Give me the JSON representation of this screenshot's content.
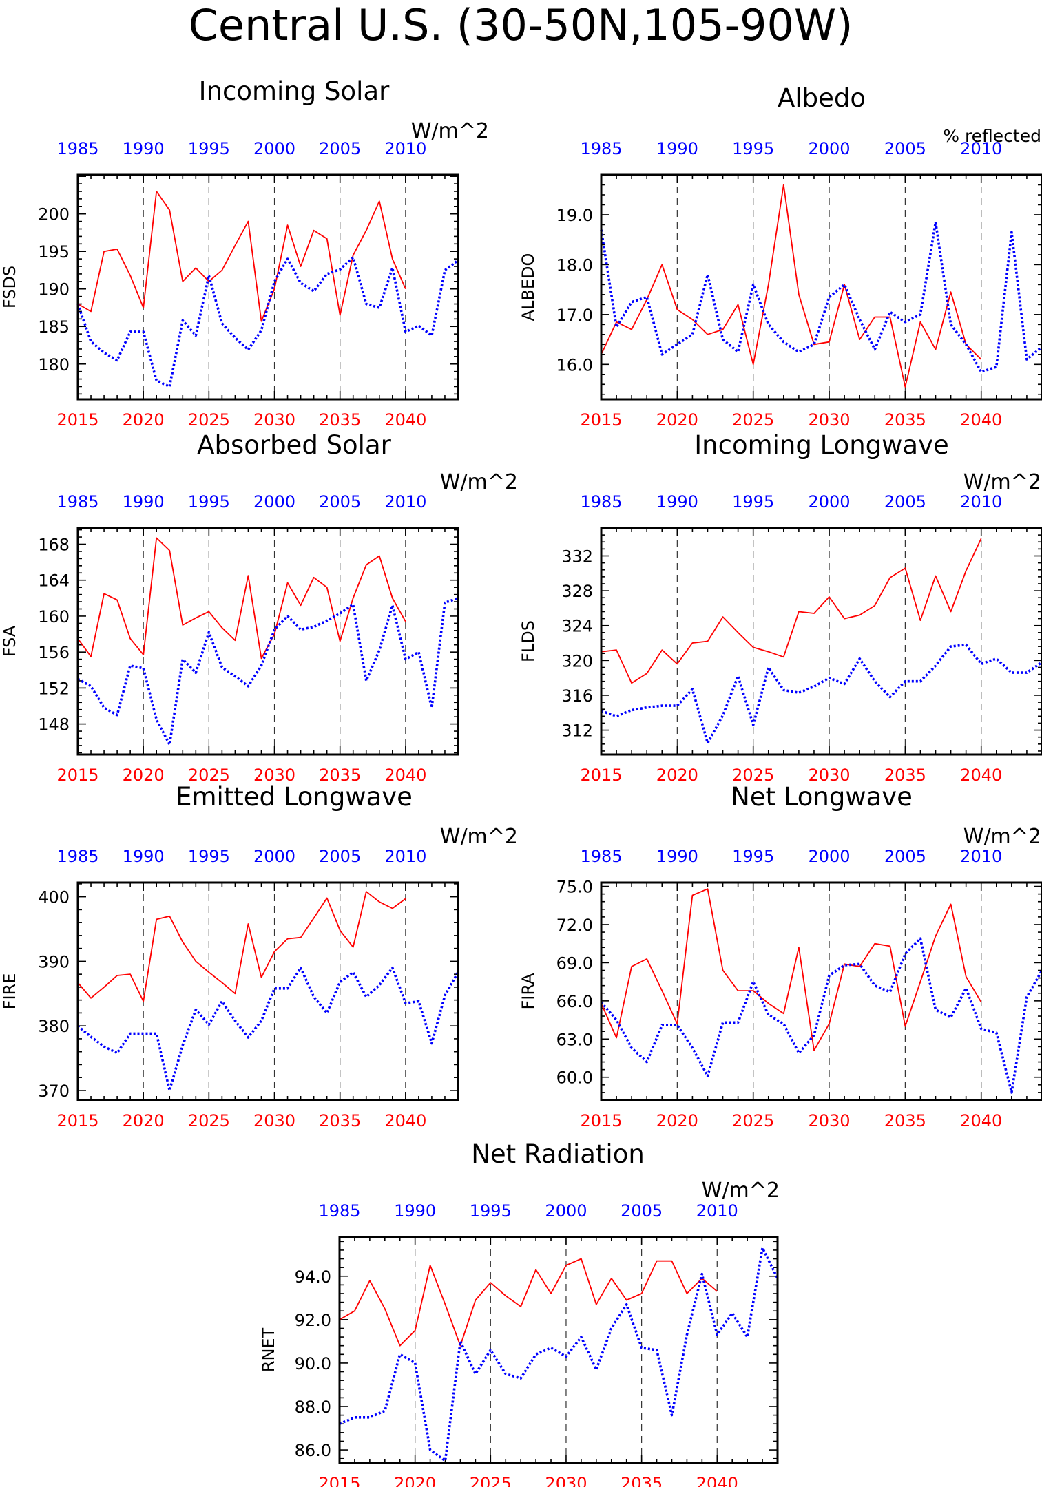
{
  "figure": {
    "title": "Central U.S. (30-50N,105-90W)"
  },
  "colors": {
    "future": "#ff0000",
    "historical": "#0000ff",
    "axis": "#000000",
    "grid": "#333333"
  },
  "chart_data": [
    {
      "type": "line",
      "title": "Incoming Solar",
      "units": "W/m^2",
      "ylabel": "FSDS",
      "ylim": [
        175.3,
        205.2
      ],
      "yticks": [
        180,
        185,
        190,
        195,
        200
      ],
      "ytick_labels": [
        "180",
        "185",
        "190",
        "195",
        "200"
      ],
      "xlim_bottom": [
        2015,
        2044
      ],
      "xticks_bottom": [
        2015,
        2020,
        2025,
        2030,
        2035,
        2040
      ],
      "xticks_top_labels": [
        "1985",
        "1990",
        "1995",
        "2000",
        "2005",
        "2010"
      ],
      "series": [
        {
          "period": "2015-2040",
          "axis": "bottom",
          "style": "solid",
          "values": [
            188.0,
            187.0,
            195.0,
            195.3,
            191.8,
            187.5,
            203.0,
            200.5,
            191.0,
            192.8,
            191.0,
            192.5,
            195.8,
            199.0,
            185.7,
            190.0,
            198.5,
            193.0,
            197.8,
            196.7,
            186.5,
            194.5,
            197.8,
            201.7,
            194.0,
            190.0
          ]
        },
        {
          "period": "1985-2014",
          "axis": "top",
          "style": "dotted",
          "values": [
            188.0,
            183.0,
            181.5,
            180.5,
            184.3,
            184.3,
            177.8,
            177.0,
            185.8,
            183.8,
            191.8,
            185.4,
            183.5,
            181.9,
            184.5,
            191.0,
            194.0,
            190.8,
            189.7,
            192.0,
            192.6,
            194.2,
            188.0,
            187.5,
            192.8,
            184.3,
            185.1,
            183.8,
            192.5,
            193.8
          ]
        }
      ]
    },
    {
      "type": "line",
      "title": "Albedo",
      "units": "% reflected",
      "ylabel": "ALBEDO",
      "ylim": [
        15.3,
        19.8
      ],
      "yticks": [
        16,
        17,
        18,
        19
      ],
      "ytick_labels": [
        "16.0",
        "17.0",
        "18.0",
        "19.0"
      ],
      "xlim_bottom": [
        2015,
        2044
      ],
      "xticks_bottom": [
        2015,
        2020,
        2025,
        2030,
        2035,
        2040
      ],
      "xticks_top_labels": [
        "1985",
        "1990",
        "1995",
        "2000",
        "2005",
        "2010"
      ],
      "series": [
        {
          "period": "2015-2040",
          "axis": "bottom",
          "style": "solid",
          "values": [
            16.2,
            16.85,
            16.7,
            17.3,
            18.0,
            17.1,
            16.9,
            16.6,
            16.7,
            17.2,
            16.0,
            17.6,
            19.6,
            17.4,
            16.4,
            16.45,
            17.6,
            16.5,
            16.95,
            16.95,
            15.55,
            16.85,
            16.3,
            17.45,
            16.4,
            16.1
          ]
        },
        {
          "period": "1985-2014",
          "axis": "top",
          "style": "dotted",
          "values": [
            18.7,
            16.75,
            17.25,
            17.35,
            16.2,
            16.4,
            16.6,
            17.8,
            16.5,
            16.25,
            17.6,
            16.8,
            16.45,
            16.25,
            16.4,
            17.35,
            17.6,
            16.9,
            16.3,
            17.05,
            16.85,
            17.0,
            18.85,
            16.8,
            16.4,
            15.85,
            15.95,
            18.65,
            16.1,
            16.35
          ]
        }
      ]
    },
    {
      "type": "line",
      "title": "Absorbed Solar",
      "units": "W/m^2",
      "ylabel": "FSA",
      "ylim": [
        144.6,
        169.8
      ],
      "yticks": [
        148,
        152,
        156,
        160,
        164,
        168
      ],
      "ytick_labels": [
        "148",
        "152",
        "156",
        "160",
        "164",
        "168"
      ],
      "xlim_bottom": [
        2015,
        2044
      ],
      "xticks_bottom": [
        2015,
        2020,
        2025,
        2030,
        2035,
        2040
      ],
      "xticks_top_labels": [
        "1985",
        "1990",
        "1995",
        "2000",
        "2005",
        "2010"
      ],
      "series": [
        {
          "period": "2015-2040",
          "axis": "bottom",
          "style": "solid",
          "values": [
            157.5,
            155.5,
            162.5,
            161.8,
            157.5,
            155.7,
            168.7,
            167.3,
            159.0,
            159.8,
            160.5,
            158.7,
            157.3,
            164.5,
            155.3,
            158.0,
            163.7,
            161.2,
            164.3,
            163.2,
            157.2,
            162.0,
            165.7,
            166.7,
            162.0,
            159.4
          ]
        },
        {
          "period": "1985-2014",
          "axis": "top",
          "style": "dotted",
          "values": [
            153.0,
            152.2,
            149.8,
            149.0,
            154.5,
            154.2,
            148.5,
            145.7,
            155.2,
            153.7,
            158.2,
            154.3,
            153.3,
            152.2,
            154.5,
            158.5,
            160.0,
            158.5,
            158.8,
            159.5,
            160.3,
            161.3,
            152.8,
            156.2,
            161.2,
            155.2,
            156.0,
            149.8,
            161.5,
            162.0
          ]
        }
      ]
    },
    {
      "type": "line",
      "title": "Incoming Longwave",
      "units": "W/m^2",
      "ylabel": "FLDS",
      "ylim": [
        309.2,
        335.2
      ],
      "yticks": [
        312,
        316,
        320,
        324,
        328,
        332
      ],
      "ytick_labels": [
        "312",
        "316",
        "320",
        "324",
        "328",
        "332"
      ],
      "xlim_bottom": [
        2015,
        2044
      ],
      "xticks_bottom": [
        2015,
        2020,
        2025,
        2030,
        2035,
        2040
      ],
      "xticks_top_labels": [
        "1985",
        "1990",
        "1995",
        "2000",
        "2005",
        "2010"
      ],
      "series": [
        {
          "period": "2015-2040",
          "axis": "bottom",
          "style": "solid",
          "values": [
            321.0,
            321.2,
            317.4,
            318.5,
            321.2,
            319.6,
            322.0,
            322.2,
            325.0,
            323.2,
            321.5,
            321.0,
            320.4,
            325.6,
            325.4,
            327.3,
            324.8,
            325.2,
            326.3,
            329.5,
            330.6,
            324.6,
            329.7,
            325.6,
            330.3,
            334.0
          ]
        },
        {
          "period": "1985-2014",
          "axis": "top",
          "style": "dotted",
          "values": [
            314.2,
            313.6,
            314.3,
            314.6,
            314.8,
            314.8,
            316.7,
            310.5,
            313.7,
            318.2,
            312.6,
            319.2,
            316.6,
            316.3,
            317.0,
            318.0,
            317.3,
            320.2,
            317.6,
            315.8,
            317.6,
            317.6,
            319.4,
            321.6,
            321.8,
            319.6,
            320.2,
            318.6,
            318.6,
            319.8
          ]
        }
      ]
    },
    {
      "type": "line",
      "title": "Emitted Longwave",
      "units": "W/m^2",
      "ylabel": "FIRE",
      "ylim": [
        368.5,
        402.2
      ],
      "yticks": [
        370,
        380,
        390,
        400
      ],
      "ytick_labels": [
        "370",
        "380",
        "390",
        "400"
      ],
      "xlim_bottom": [
        2015,
        2044
      ],
      "xticks_bottom": [
        2015,
        2020,
        2025,
        2030,
        2035,
        2040
      ],
      "xticks_top_labels": [
        "1985",
        "1990",
        "1995",
        "2000",
        "2005",
        "2010"
      ],
      "series": [
        {
          "period": "2015-2040",
          "axis": "bottom",
          "style": "solid",
          "values": [
            386.7,
            384.3,
            386.0,
            387.8,
            388.0,
            383.8,
            396.5,
            397.0,
            393.0,
            390.0,
            388.3,
            386.7,
            385.0,
            395.8,
            387.5,
            391.5,
            393.5,
            393.7,
            396.7,
            399.8,
            394.8,
            392.2,
            400.8,
            399.2,
            398.2,
            399.7
          ]
        },
        {
          "period": "1985-2014",
          "axis": "top",
          "style": "dotted",
          "values": [
            380.0,
            378.3,
            376.8,
            375.8,
            378.8,
            378.8,
            378.8,
            370.0,
            377.0,
            382.5,
            380.2,
            383.8,
            380.8,
            378.2,
            380.8,
            385.8,
            385.8,
            389.0,
            384.5,
            382.0,
            386.8,
            388.3,
            384.5,
            386.3,
            389.0,
            383.5,
            383.8,
            377.3,
            384.7,
            388.3
          ]
        }
      ]
    },
    {
      "type": "line",
      "title": "Net Longwave",
      "units": "W/m^2",
      "ylabel": "FIRA",
      "ylim": [
        58.2,
        75.3
      ],
      "yticks": [
        60,
        63,
        66,
        69,
        72,
        75
      ],
      "ytick_labels": [
        "60.0",
        "63.0",
        "66.0",
        "69.0",
        "72.0",
        "75.0"
      ],
      "xlim_bottom": [
        2015,
        2044
      ],
      "xticks_bottom": [
        2015,
        2020,
        2025,
        2030,
        2035,
        2040
      ],
      "xticks_top_labels": [
        "1985",
        "1990",
        "1995",
        "2000",
        "2005",
        "2010"
      ],
      "series": [
        {
          "period": "2015-2040",
          "axis": "bottom",
          "style": "solid",
          "values": [
            65.8,
            63.1,
            68.7,
            69.3,
            66.8,
            64.2,
            74.3,
            74.8,
            68.4,
            66.8,
            66.8,
            65.8,
            65.0,
            70.2,
            62.1,
            64.2,
            68.9,
            68.7,
            70.5,
            70.3,
            64.0,
            67.5,
            71.1,
            73.6,
            67.9,
            65.9
          ]
        },
        {
          "period": "1985-2014",
          "axis": "top",
          "style": "dotted",
          "values": [
            65.9,
            64.5,
            62.3,
            61.2,
            64.1,
            64.1,
            62.3,
            60.1,
            64.3,
            64.3,
            67.5,
            64.9,
            64.2,
            61.9,
            63.3,
            68.0,
            68.8,
            68.9,
            67.2,
            66.7,
            69.7,
            70.9,
            65.3,
            64.7,
            67.0,
            63.8,
            63.5,
            58.8,
            66.3,
            68.4
          ]
        }
      ]
    },
    {
      "type": "line",
      "title": "Net Radiation",
      "units": "W/m^2",
      "ylabel": "RNET",
      "ylim": [
        85.4,
        95.8
      ],
      "yticks": [
        86,
        88,
        90,
        92,
        94
      ],
      "ytick_labels": [
        "86.0",
        "88.0",
        "90.0",
        "92.0",
        "94.0"
      ],
      "xlim_bottom": [
        2015,
        2044
      ],
      "xticks_bottom": [
        2015,
        2020,
        2025,
        2030,
        2035,
        2040
      ],
      "xticks_top_labels": [
        "1985",
        "1990",
        "1995",
        "2000",
        "2005",
        "2010"
      ],
      "series": [
        {
          "period": "2015-2040",
          "axis": "bottom",
          "style": "solid",
          "values": [
            92.0,
            92.4,
            93.8,
            92.5,
            90.8,
            91.5,
            94.5,
            92.7,
            90.8,
            92.9,
            93.7,
            93.1,
            92.6,
            94.3,
            93.2,
            94.5,
            94.8,
            92.7,
            93.9,
            92.9,
            93.2,
            94.7,
            94.7,
            93.2,
            93.9,
            93.3
          ]
        },
        {
          "period": "1985-2014",
          "axis": "top",
          "style": "dotted",
          "values": [
            87.2,
            87.5,
            87.5,
            87.8,
            90.4,
            90.0,
            86.0,
            85.5,
            91.0,
            89.5,
            90.6,
            89.5,
            89.3,
            90.4,
            90.7,
            90.3,
            91.2,
            89.7,
            91.6,
            92.7,
            90.7,
            90.6,
            87.6,
            91.3,
            94.1,
            91.3,
            92.3,
            91.2,
            95.3,
            93.9
          ]
        }
      ]
    }
  ]
}
